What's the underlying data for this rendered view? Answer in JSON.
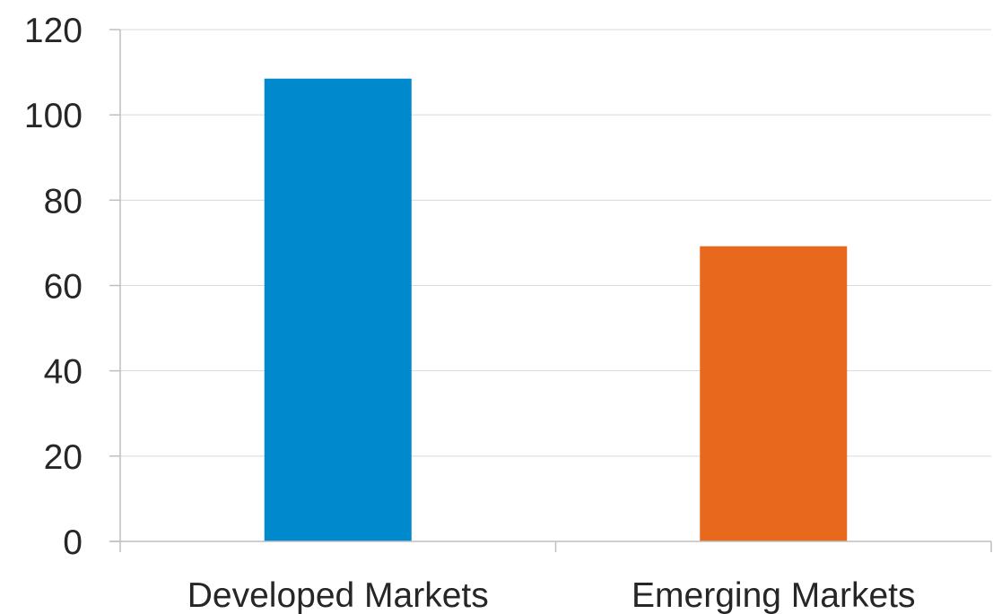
{
  "chart_data": {
    "type": "bar",
    "categories": [
      "Developed Markets",
      "Emerging Markets"
    ],
    "values": [
      108.5,
      69.2
    ],
    "colors": [
      "#0089cc",
      "#e8691e"
    ],
    "yticks": [
      "0",
      "20",
      "40",
      "60",
      "80",
      "100",
      "120"
    ],
    "ylim": [
      0,
      120
    ],
    "title": "",
    "xlabel": "",
    "ylabel": "",
    "grid": true,
    "gridline_color": "#d9d9d9",
    "axis_color": "#bfbfbf"
  }
}
